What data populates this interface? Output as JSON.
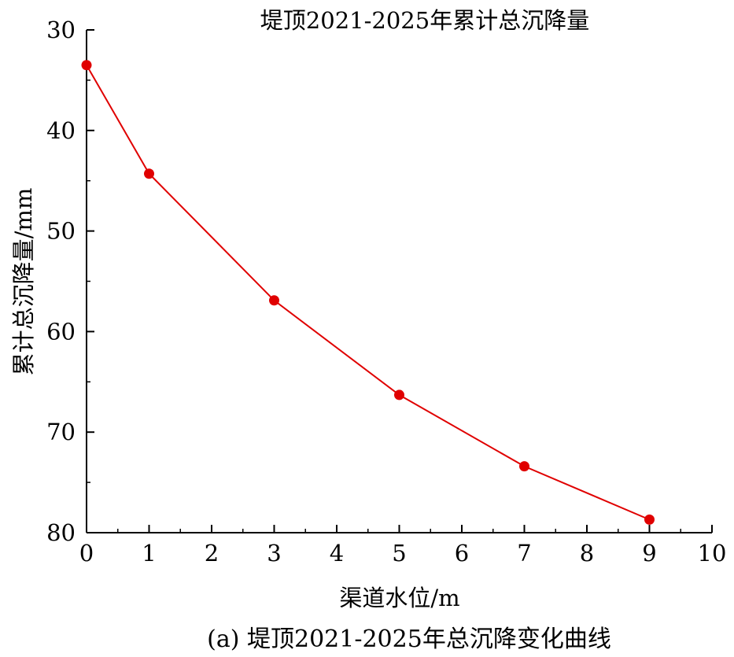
{
  "chart_data": {
    "type": "line",
    "title": "堤顶2021-2025年累计总沉降量",
    "caption": "(a) 堤顶2021-2025年总沉降变化曲线",
    "xlabel": "渠道水位/m",
    "ylabel": "累计总沉降量/mm",
    "xlim": [
      0,
      10
    ],
    "ylim": [
      30,
      80
    ],
    "y_inverted": true,
    "x_ticks": [
      0,
      1,
      2,
      3,
      4,
      5,
      6,
      7,
      8,
      9,
      10
    ],
    "y_ticks": [
      30,
      40,
      50,
      60,
      70,
      80
    ],
    "grid": false,
    "legend": "none",
    "series": [
      {
        "x": [
          0,
          1,
          3,
          5,
          7,
          9
        ],
        "y": [
          33.5,
          44.3,
          56.9,
          66.3,
          73.4,
          78.7
        ],
        "color": "#e00000",
        "marker": "circle"
      }
    ]
  }
}
